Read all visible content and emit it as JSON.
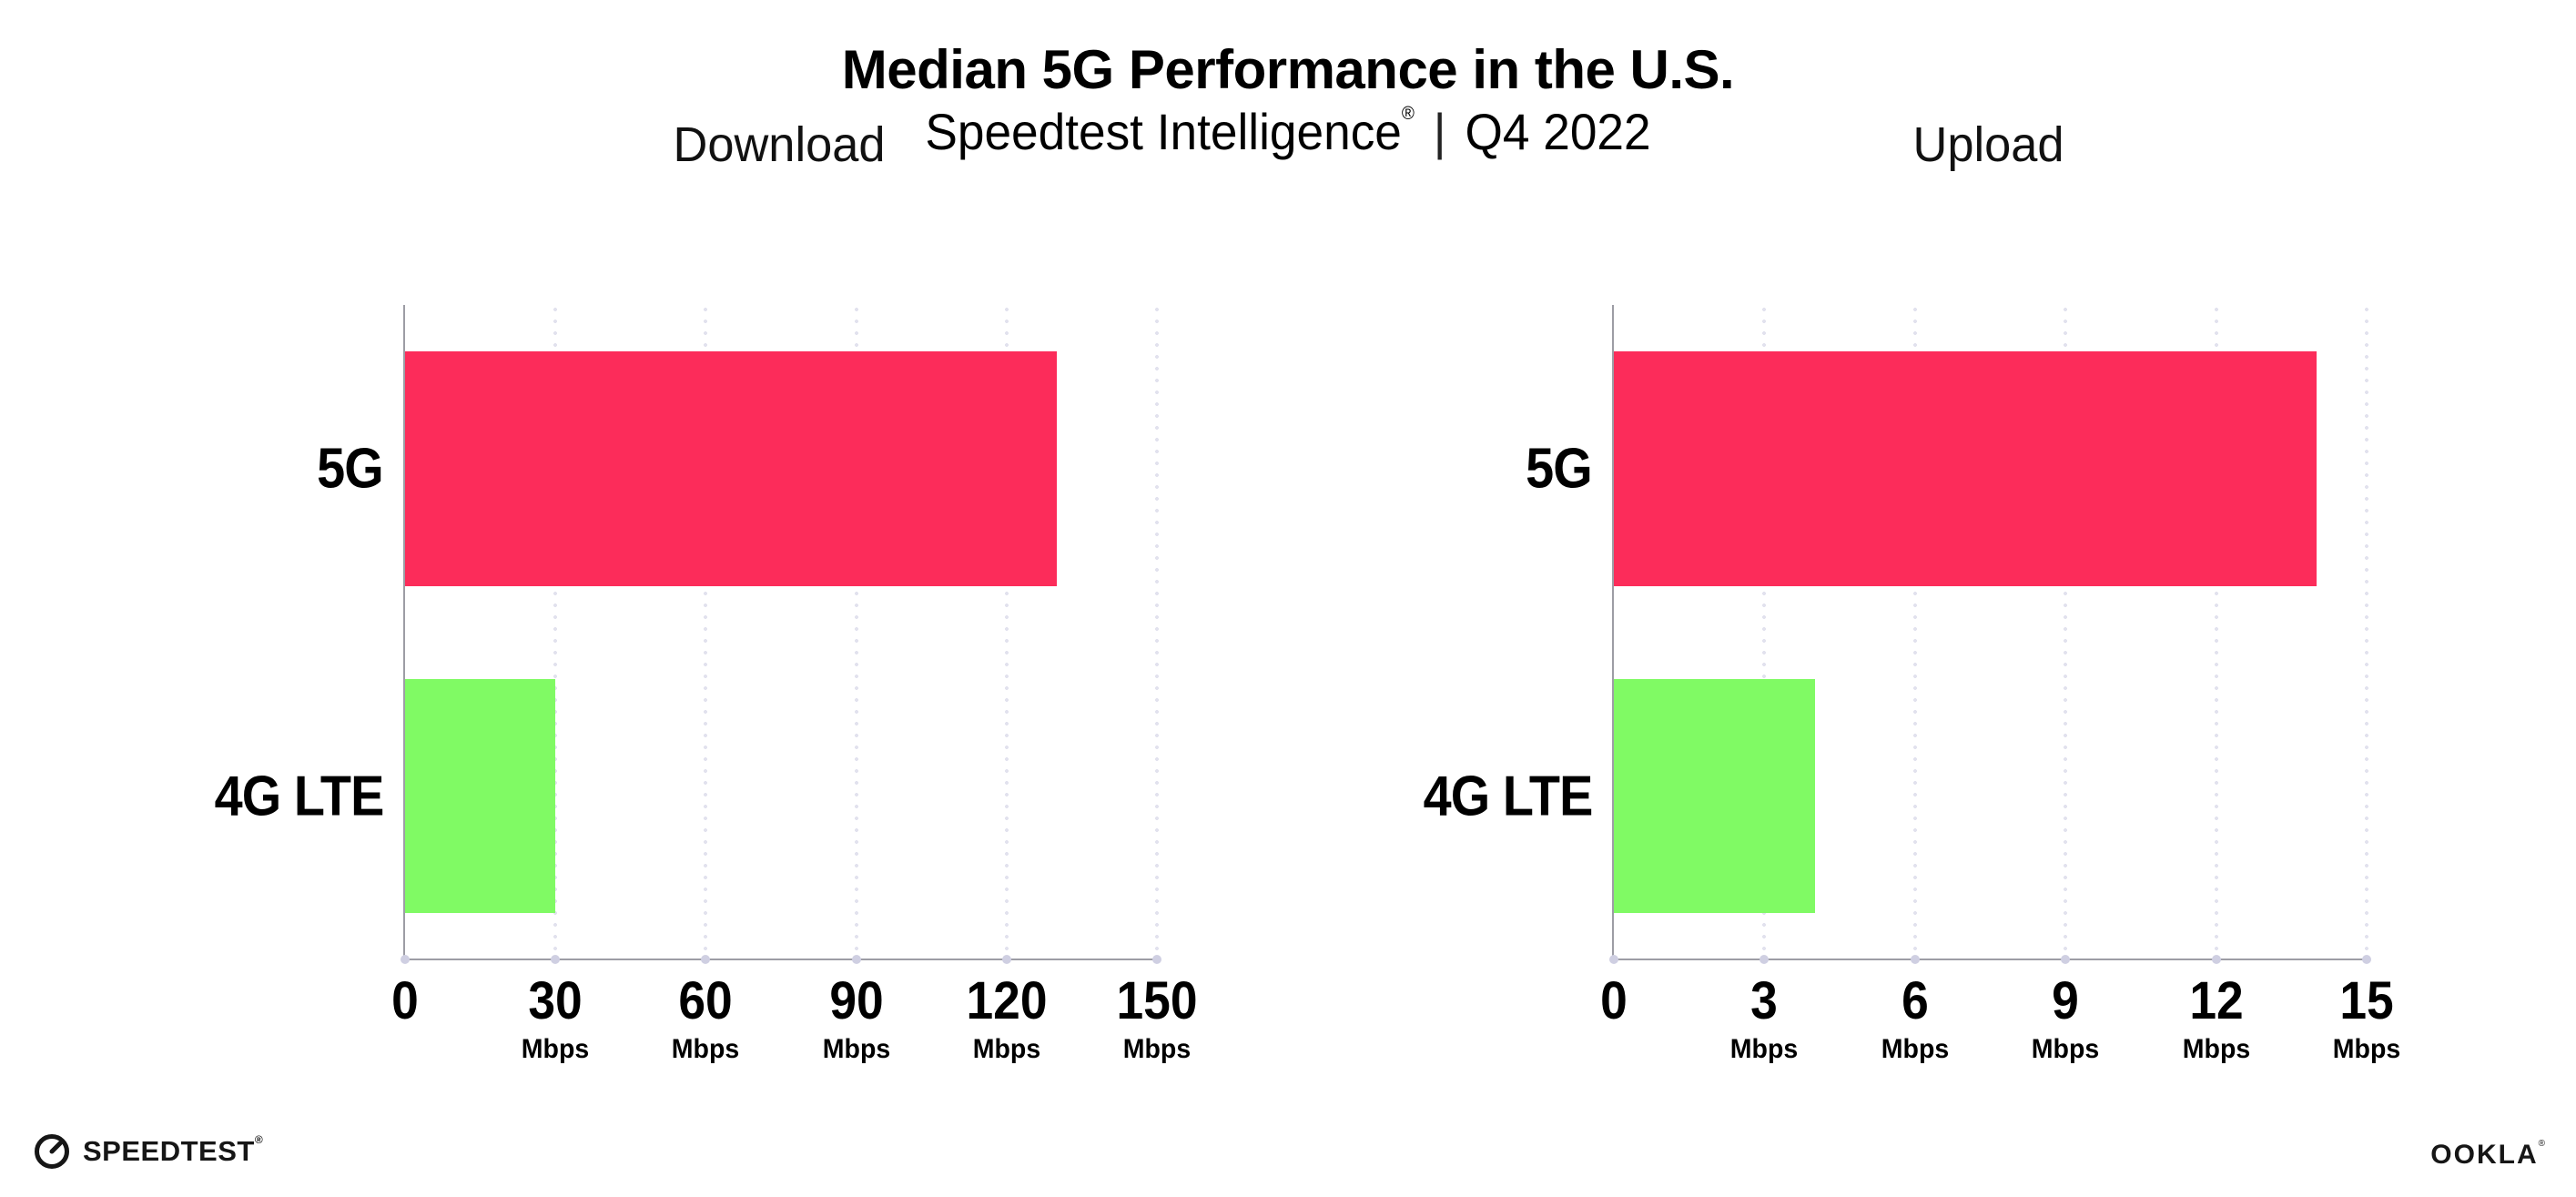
{
  "header": {
    "title": "Median 5G Performance in the U.S.",
    "subtitle_brand": "Speedtest Intelligence",
    "subtitle_mark": "®",
    "subtitle_sep": "|",
    "subtitle_period": "Q4 2022"
  },
  "footer": {
    "speedtest_label": "SPEEDTEST",
    "speedtest_mark": "®",
    "ookla_label": "OOKLA",
    "ookla_mark": "®"
  },
  "colors": {
    "bar_5g": "#FC2C5A",
    "bar_4g_lte": "#80FA64",
    "axis": "#9D9DA5",
    "gridline": "#E2E2EE",
    "tick_dot": "#CFCFE2",
    "text": "#000000"
  },
  "chart_data": [
    {
      "type": "bar",
      "orientation": "horizontal",
      "title": "Download",
      "categories": [
        "5G",
        "4G LTE"
      ],
      "values": [
        130,
        30
      ],
      "unit": "Mbps",
      "xlim": [
        0,
        150
      ],
      "xticks": [
        0,
        30,
        60,
        90,
        120,
        150
      ],
      "tick_unit_label": "Mbps",
      "bar_colors": [
        "#FC2C5A",
        "#80FA64"
      ],
      "grid": "dotted-vertical",
      "legend": "none"
    },
    {
      "type": "bar",
      "orientation": "horizontal",
      "title": "Upload",
      "categories": [
        "5G",
        "4G LTE"
      ],
      "values": [
        14,
        4
      ],
      "unit": "Mbps",
      "xlim": [
        0,
        15
      ],
      "xticks": [
        0,
        3,
        6,
        9,
        12,
        15
      ],
      "tick_unit_label": "Mbps",
      "bar_colors": [
        "#FC2C5A",
        "#80FA64"
      ],
      "grid": "dotted-vertical",
      "legend": "none"
    }
  ]
}
